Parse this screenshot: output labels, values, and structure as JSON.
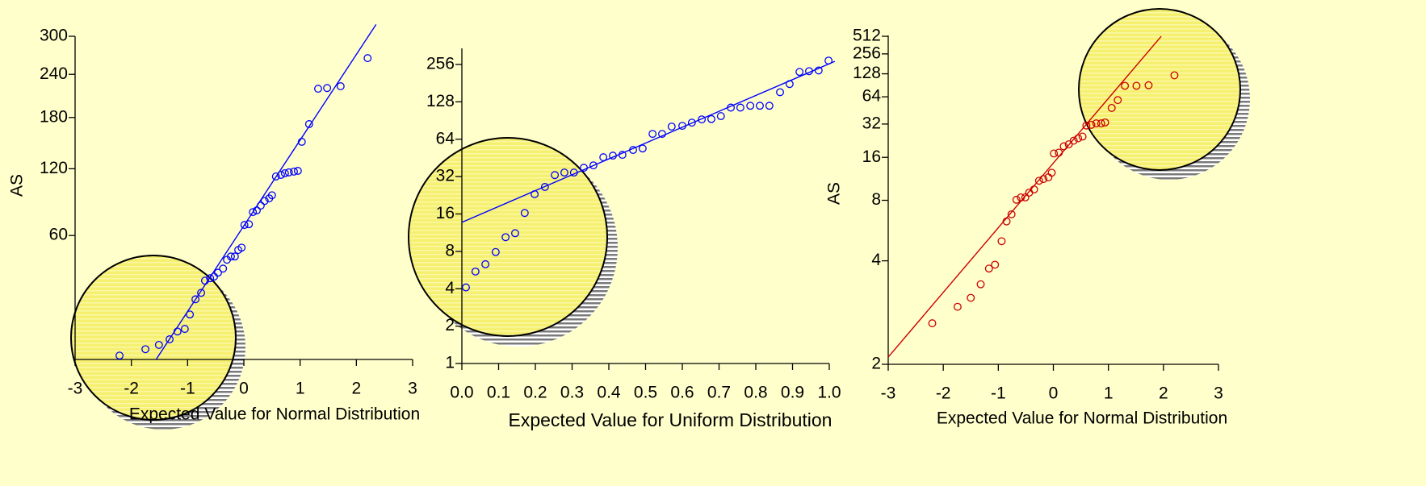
{
  "chart_data": [
    {
      "type": "scatter",
      "color": "#0000ff",
      "yscale": "sqrt",
      "ylabel": "AS",
      "xlabel": "Expected Value for Normal Distribution",
      "xlim": [
        -3,
        3
      ],
      "xticks": [
        -3,
        -2,
        -1,
        0,
        1,
        2,
        3
      ],
      "ylim": [
        3.2,
        300
      ],
      "yticks": [
        60,
        120,
        180,
        240,
        300
      ],
      "x": [
        -2.21,
        -1.75,
        -1.51,
        -1.32,
        -1.18,
        -1.05,
        -0.96,
        -0.86,
        -0.76,
        -0.69,
        -0.6,
        -0.53,
        -0.46,
        -0.37,
        -0.3,
        -0.23,
        -0.16,
        -0.1,
        -0.04,
        0.01,
        0.09,
        0.16,
        0.23,
        0.3,
        0.37,
        0.45,
        0.5,
        0.57,
        0.66,
        0.73,
        0.8,
        0.89,
        0.96,
        1.03,
        1.16,
        1.32,
        1.48,
        1.72,
        2.2
      ],
      "values": [
        3.9,
        5.2,
        6.2,
        7.6,
        9.8,
        10.6,
        15.6,
        21.9,
        24.9,
        31.1,
        32.4,
        33.3,
        35.5,
        37.9,
        43.3,
        45.4,
        45.4,
        49.7,
        51.3,
        68.1,
        68.7,
        78.7,
        80.1,
        84.3,
        88.5,
        90.8,
        93.7,
        112,
        113.6,
        115.3,
        116.2,
        117,
        117.8,
        150,
        171.6,
        219,
        220,
        222.6,
        264.7
      ],
      "fit_line": {
        "x": [
          -1.56,
          2.35
        ],
        "values": [
          3.2,
          320
        ]
      }
    },
    {
      "type": "scatter",
      "color": "#0000ff",
      "yscale": "log",
      "xlabel": "Expected Value for Uniform Distribution",
      "xlim": [
        0,
        1
      ],
      "xticks": [
        {
          "value": 0,
          "label": "0.0"
        },
        0.1,
        0.2,
        0.3,
        0.4,
        0.5,
        0.6,
        0.7,
        0.8,
        0.9,
        {
          "value": 1,
          "label": "1.0"
        }
      ],
      "ylim": [
        1,
        345
      ],
      "yticks": [
        1,
        2,
        4,
        8,
        16,
        32,
        64,
        128,
        256
      ],
      "x": [
        0.011,
        0.037,
        0.064,
        0.092,
        0.119,
        0.145,
        0.171,
        0.198,
        0.226,
        0.253,
        0.279,
        0.305,
        0.332,
        0.358,
        0.385,
        0.411,
        0.437,
        0.466,
        0.492,
        0.519,
        0.545,
        0.571,
        0.6,
        0.626,
        0.653,
        0.679,
        0.705,
        0.732,
        0.758,
        0.785,
        0.811,
        0.837,
        0.866,
        0.892,
        0.919,
        0.945,
        0.971,
        0.998
      ],
      "values": [
        4.1,
        5.5,
        6.3,
        7.9,
        10.4,
        11.2,
        16.3,
        23.1,
        26.4,
        32.9,
        34.5,
        34.5,
        37.7,
        39.4,
        45.8,
        47.2,
        47.9,
        52.4,
        53.9,
        70.6,
        70.6,
        80.9,
        82,
        87,
        92.4,
        93,
        98.2,
        115,
        115,
        119,
        119,
        119,
        153,
        178,
        223,
        226,
        229,
        275
      ],
      "fit_line": {
        "x": [
          0,
          1.015
        ],
        "values": [
          13.7,
          271
        ]
      }
    },
    {
      "type": "scatter",
      "color": "#cc0000",
      "yscale": "log-log",
      "ylabel": "AS",
      "xlabel": "Expected Value for Normal Distribution",
      "xlim": [
        -3,
        3
      ],
      "xticks": [
        -3,
        -2,
        -1,
        0,
        1,
        2,
        3
      ],
      "ylim": [
        2,
        530
      ],
      "yticks": [
        2,
        4,
        8,
        16,
        32,
        64,
        128,
        256,
        512
      ],
      "x": [
        -2.2,
        -1.74,
        -1.5,
        -1.32,
        -1.17,
        -1.06,
        -0.94,
        -0.85,
        -0.76,
        -0.67,
        -0.59,
        -0.51,
        -0.44,
        -0.35,
        -0.26,
        -0.18,
        -0.09,
        -0.03,
        0.01,
        0.1,
        0.19,
        0.28,
        0.37,
        0.45,
        0.53,
        0.6,
        0.69,
        0.78,
        0.87,
        0.94,
        1.06,
        1.17,
        1.3,
        1.51,
        1.73,
        2.2
      ],
      "values": [
        2.49,
        2.77,
        2.95,
        3.27,
        3.73,
        3.86,
        4.86,
        6.08,
        6.64,
        8.06,
        8.33,
        8.33,
        8.92,
        9.36,
        10.7,
        11,
        11.3,
        12.2,
        17.2,
        17.5,
        19.8,
        20.6,
        22.2,
        23.3,
        24.2,
        30.9,
        31.4,
        32.5,
        32.5,
        33.2,
        47.5,
        58.5,
        88,
        88,
        89.5,
        122
      ],
      "fit_line": {
        "x": [
          -3,
          1.96
        ],
        "values": [
          2.07,
          512
        ]
      }
    }
  ]
}
